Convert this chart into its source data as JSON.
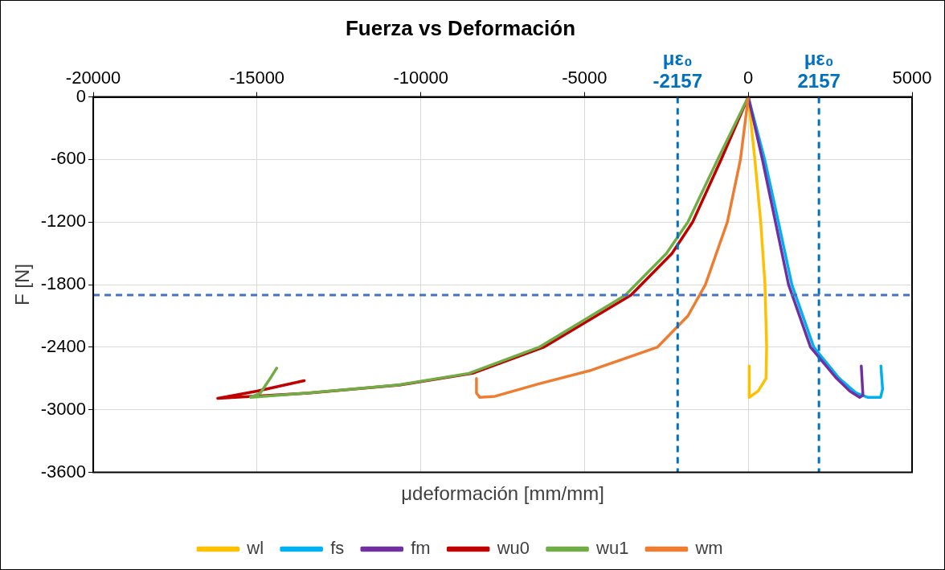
{
  "chart_data": {
    "type": "line",
    "title": "Fuerza vs Deformación",
    "xlabel": "μdeformación [mm/mm]",
    "ylabel": "F [N]",
    "xlim": [
      -20000,
      5000
    ],
    "xticks": [
      -20000,
      -15000,
      -10000,
      -5000,
      0,
      5000
    ],
    "ylim": [
      -3600,
      0
    ],
    "yticks": [
      0,
      -600,
      -1200,
      -1800,
      -2400,
      -3000,
      -3600
    ],
    "grid": true,
    "legend": "bottom",
    "marker": "none",
    "line_style": "solid",
    "ref_lines": [
      {
        "axis": "x",
        "value": -2157,
        "label": "με₀\n-2157",
        "color": "#0070c0",
        "line_style": "dashed"
      },
      {
        "axis": "x",
        "value": 2157,
        "label": "με₀\n2157",
        "color": "#0070c0",
        "line_style": "dashed"
      },
      {
        "axis": "y",
        "value": -1900,
        "color": "#4472c4",
        "line_style": "dashed"
      }
    ],
    "series": [
      {
        "name": "wl",
        "color": "#ffc000",
        "x": [
          0,
          200,
          380,
          510,
          560,
          540,
          300,
          30,
          30
        ],
        "values": [
          0,
          -600,
          -1200,
          -1800,
          -2400,
          -2700,
          -2820,
          -2880,
          -2580
        ]
      },
      {
        "name": "fs",
        "color": "#00b0f0",
        "x": [
          0,
          500,
          920,
          1330,
          2000,
          2780,
          3300,
          3640,
          4040,
          4100,
          4050
        ],
        "values": [
          0,
          -600,
          -1200,
          -1800,
          -2400,
          -2700,
          -2840,
          -2880,
          -2880,
          -2800,
          -2580
        ]
      },
      {
        "name": "fm",
        "color": "#7030a0",
        "x": [
          0,
          430,
          830,
          1230,
          1900,
          2700,
          3100,
          3400,
          3500,
          3450
        ],
        "values": [
          0,
          -600,
          -1200,
          -1800,
          -2400,
          -2700,
          -2820,
          -2880,
          -2860,
          -2580
        ]
      },
      {
        "name": "wu0",
        "color": "#c00000",
        "x": [
          0,
          -830,
          -1700,
          -2330,
          -3580,
          -6250,
          -8420,
          -10600,
          -13450,
          -16200,
          -15000,
          -13560
        ],
        "values": [
          0,
          -600,
          -1200,
          -1500,
          -1900,
          -2400,
          -2650,
          -2760,
          -2840,
          -2890,
          -2820,
          -2720
        ]
      },
      {
        "name": "wu1",
        "color": "#70ad47",
        "x": [
          0,
          -936,
          -1845,
          -2500,
          -3750,
          -6390,
          -8530,
          -10670,
          -13500,
          -15200,
          -14900,
          -14600,
          -14400
        ],
        "values": [
          0,
          -600,
          -1200,
          -1500,
          -1900,
          -2400,
          -2650,
          -2760,
          -2840,
          -2880,
          -2840,
          -2700,
          -2600
        ]
      },
      {
        "name": "wm",
        "color": "#ed7d31",
        "x": [
          0,
          -240,
          -640,
          -1310,
          -1845,
          -2780,
          -4790,
          -6390,
          -7730,
          -8200,
          -8300,
          -8300
        ],
        "values": [
          0,
          -600,
          -1200,
          -1800,
          -2100,
          -2400,
          -2620,
          -2750,
          -2870,
          -2880,
          -2840,
          -2700
        ]
      }
    ]
  }
}
